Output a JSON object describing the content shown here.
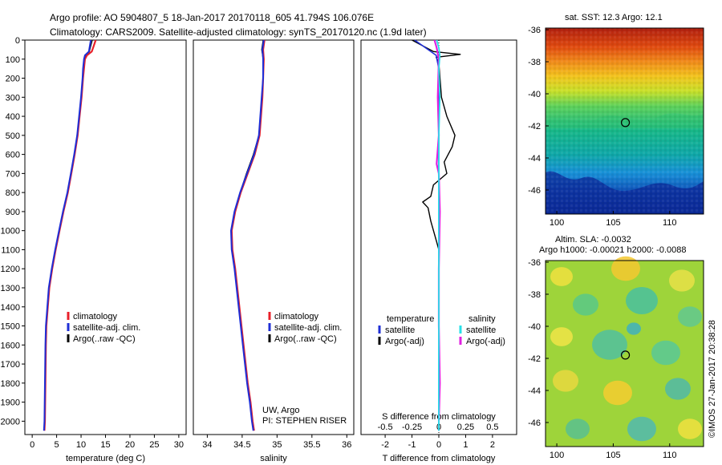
{
  "header": {
    "line1": "Argo profile: AO 5904807_5 18-Jan-2017 20170118_605 41.794S 106.076E",
    "line2": "Climatology: CARS2009. Satellite-adjusted climatology: synTS_20170120.nc (1.9d later)"
  },
  "credit": "©IMOS 27-Jan-2017 20:38:28",
  "colors": {
    "climatology": "#e8202a",
    "satellite": "#1f2fd6",
    "argo": "#000000",
    "sat_salinity": "#28e0e8",
    "argo_salinity": "#e020e0"
  },
  "depth_ticks": [
    0,
    100,
    200,
    300,
    400,
    500,
    600,
    700,
    800,
    900,
    1000,
    1100,
    1200,
    1300,
    1400,
    1500,
    1600,
    1700,
    1800,
    1900,
    2000
  ],
  "chart_data": [
    {
      "type": "line",
      "name": "temperature",
      "xlabel": "temperature (deg C)",
      "ylabel": "",
      "xlim": [
        -1.5,
        31.5
      ],
      "ylim": [
        2070,
        0
      ],
      "x_ticks": [
        0,
        5,
        10,
        15,
        20,
        25,
        30
      ],
      "legend": [
        "climatology",
        "satellite-adj. clim.",
        "Argo(..raw -QC)"
      ],
      "series": [
        {
          "name": "climatology",
          "x": [
            13.0,
            12.6,
            12.2,
            11.2,
            10.8,
            10.6,
            10.4,
            10.1,
            9.7,
            9.3,
            8.7,
            8.0,
            7.3,
            6.4,
            5.6,
            4.8,
            4.1,
            3.5,
            3.2,
            2.9,
            2.8,
            2.7,
            2.6,
            2.5
          ],
          "y": [
            0,
            30,
            60,
            80,
            100,
            150,
            200,
            300,
            400,
            500,
            600,
            700,
            800,
            900,
            1000,
            1100,
            1200,
            1300,
            1400,
            1500,
            1600,
            1800,
            2000,
            2050
          ]
        },
        {
          "name": "satellite-adj. clim.",
          "x": [
            12.0,
            11.8,
            11.6,
            10.8,
            10.6,
            10.4,
            10.3,
            10.0,
            9.6,
            9.2,
            8.6,
            7.9,
            7.2,
            6.3,
            5.5,
            4.7,
            4.0,
            3.4,
            3.1,
            2.8,
            2.7,
            2.6,
            2.5,
            2.4
          ],
          "y": [
            0,
            30,
            60,
            80,
            100,
            150,
            200,
            300,
            400,
            500,
            600,
            700,
            800,
            900,
            1000,
            1100,
            1200,
            1300,
            1400,
            1500,
            1600,
            1800,
            2000,
            2050
          ]
        },
        {
          "name": "Argo(..raw -QC)",
          "x": [
            12.3,
            12.0,
            11.7,
            10.9,
            10.6,
            10.4,
            10.3,
            10.0,
            9.6,
            9.2,
            8.6,
            7.9,
            7.2,
            6.3,
            5.5,
            4.7,
            4.0,
            3.4,
            3.1,
            2.8,
            2.7,
            2.6,
            2.5
          ],
          "y": [
            0,
            30,
            60,
            80,
            100,
            150,
            200,
            300,
            400,
            500,
            600,
            700,
            800,
            900,
            1000,
            1100,
            1200,
            1300,
            1400,
            1500,
            1600,
            1800,
            2000
          ]
        }
      ]
    },
    {
      "type": "line",
      "name": "salinity",
      "xlabel": "salinity",
      "ylabel": "",
      "xlim": [
        33.8,
        36.1
      ],
      "ylim": [
        2070,
        0
      ],
      "x_ticks": [
        34,
        34.5,
        35,
        35.5,
        36
      ],
      "legend": [
        "climatology",
        "satellite-adj. clim.",
        "Argo(..raw -QC)"
      ],
      "annotation": [
        "UW, Argo",
        "PI: STEPHEN RISER"
      ],
      "series": [
        {
          "name": "climatology",
          "x": [
            34.82,
            34.8,
            34.81,
            34.8,
            34.79,
            34.75,
            34.68,
            34.58,
            34.48,
            34.4,
            34.35,
            34.36,
            34.4,
            34.46,
            34.52,
            34.58,
            34.62,
            34.65,
            34.67
          ],
          "y": [
            0,
            50,
            100,
            200,
            300,
            500,
            600,
            700,
            800,
            900,
            1000,
            1100,
            1200,
            1400,
            1600,
            1800,
            1900,
            2000,
            2050
          ]
        },
        {
          "name": "satellite-adj. clim.",
          "x": [
            34.81,
            34.79,
            34.8,
            34.8,
            34.78,
            34.74,
            34.67,
            34.57,
            34.47,
            34.39,
            34.34,
            34.35,
            34.39,
            34.45,
            34.51,
            34.57,
            34.61,
            34.64,
            34.66
          ],
          "y": [
            0,
            50,
            100,
            200,
            300,
            500,
            600,
            700,
            800,
            900,
            1000,
            1100,
            1200,
            1400,
            1600,
            1800,
            1900,
            2000,
            2050
          ]
        },
        {
          "name": "Argo(..raw -QC)",
          "x": [
            34.8,
            34.78,
            34.8,
            34.8,
            34.78,
            34.74,
            34.66,
            34.56,
            34.47,
            34.39,
            34.34,
            34.35,
            34.39,
            34.45,
            34.51,
            34.57,
            34.61,
            34.64
          ],
          "y": [
            0,
            50,
            100,
            200,
            300,
            500,
            600,
            700,
            800,
            900,
            1000,
            1100,
            1200,
            1400,
            1600,
            1800,
            1900,
            2000
          ]
        }
      ]
    },
    {
      "type": "line",
      "name": "differences",
      "xlabel": "T difference from climatology",
      "x2label": "S difference from climatology",
      "ylabel": "",
      "xlim": [
        -2.9,
        2.9
      ],
      "x2lim": [
        -0.725,
        0.725
      ],
      "ylim": [
        2070,
        0
      ],
      "x_ticks": [
        -2,
        -1,
        0,
        1,
        2
      ],
      "x2_ticks": [
        "-0.5",
        "-0.25",
        "0",
        "0.25",
        "0.5"
      ],
      "legend_temperature": {
        "title": "temperature",
        "entries": [
          "satellite",
          "Argo(-adj)"
        ]
      },
      "legend_salinity": {
        "title": "salinity",
        "entries": [
          "satellite",
          "Argo(-adj)"
        ]
      },
      "series": [
        {
          "name": "temperature satellite",
          "x": [
            -0.9,
            -0.5,
            -0.1,
            0.0,
            0.0,
            0.0,
            0.0,
            0.0,
            0.0,
            0.0,
            0.0
          ],
          "y": [
            0,
            40,
            80,
            150,
            300,
            500,
            800,
            1100,
            1500,
            1800,
            2050
          ]
        },
        {
          "name": "temperature Argo(-adj)",
          "x": [
            -1.0,
            -0.6,
            -0.2,
            0.8,
            -0.1,
            0.0,
            0.1,
            0.3,
            0.6,
            0.5,
            0.2,
            0.3,
            -0.2,
            -0.3,
            -0.6,
            -0.4,
            -0.3,
            -0.1,
            0.0
          ],
          "y": [
            0,
            30,
            60,
            75,
            90,
            120,
            300,
            400,
            500,
            560,
            640,
            700,
            760,
            820,
            850,
            880,
            950,
            1050,
            1100
          ]
        },
        {
          "name": "salinity satellite",
          "x": [
            -0.02,
            0.0,
            0.01,
            0.0,
            0.01,
            0.0,
            0.0,
            0.0,
            0.0,
            0.0,
            0.0
          ],
          "y": [
            0,
            40,
            80,
            150,
            300,
            500,
            800,
            1100,
            1500,
            1800,
            2050
          ]
        },
        {
          "name": "salinity Argo(-adj)",
          "x": [
            -0.04,
            -0.02,
            0.0,
            -0.01,
            0.0,
            -0.02,
            0.0,
            0.01,
            0.0,
            0.0,
            0.01,
            0.0
          ],
          "y": [
            0,
            40,
            100,
            300,
            500,
            650,
            700,
            900,
            1200,
            1500,
            1800,
            2000
          ]
        }
      ]
    },
    {
      "type": "heatmap",
      "name": "sst-map",
      "title": "sat. SST: 12.3  Argo: 12.1",
      "xlim": [
        99,
        113
      ],
      "ylim": [
        -47.5,
        -35.9
      ],
      "x_ticks": [
        100,
        105,
        110
      ],
      "y_ticks": [
        -36,
        -38,
        -40,
        -42,
        -44,
        -46
      ],
      "marker": {
        "lon": 106.076,
        "lat": -41.794
      }
    },
    {
      "type": "heatmap",
      "name": "sla-map",
      "title": "Altim. SLA: -0.0032",
      "subtitle": "Argo h1000: -0.00021 h2000: -0.0088",
      "xlim": [
        99,
        113
      ],
      "ylim": [
        -47.5,
        -35.9
      ],
      "x_ticks": [
        100,
        105,
        110
      ],
      "y_ticks": [
        -36,
        -38,
        -40,
        -42,
        -44,
        -46
      ],
      "marker": {
        "lon": 106.076,
        "lat": -41.794
      }
    }
  ]
}
